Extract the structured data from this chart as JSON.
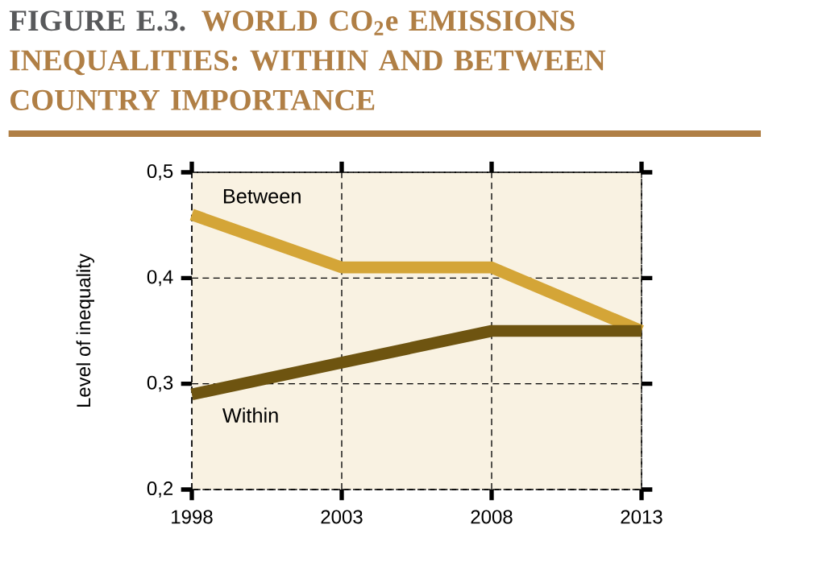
{
  "chart_data": {
    "type": "line",
    "title": "FIGURE E.3.",
    "subtitle": "WORLD CO$_{2}$e EMISSIONS INEQUALITIES: WITHIN AND BETWEEN COUNTRY IMPORTANCE",
    "ylabel": "Level of inequality",
    "x": [
      1998,
      2003,
      2008,
      2013
    ],
    "xlim": [
      1998,
      2013
    ],
    "xticks": [
      1998,
      2003,
      2008,
      2013
    ],
    "ylim": [
      0.2,
      0.5
    ],
    "yticks": [
      {
        "value": 0.2,
        "label": "0,2"
      },
      {
        "value": 0.3,
        "label": "0,3"
      },
      {
        "value": 0.4,
        "label": "0,4"
      },
      {
        "value": 0.5,
        "label": "0,5"
      }
    ],
    "grid": true,
    "series": [
      {
        "name": "Between",
        "color": "#d4a537",
        "values": [
          0.46,
          0.41,
          0.41,
          0.35
        ]
      },
      {
        "name": "Within",
        "color": "#6e5410",
        "values": [
          0.29,
          0.32,
          0.35,
          0.35
        ]
      }
    ]
  }
}
